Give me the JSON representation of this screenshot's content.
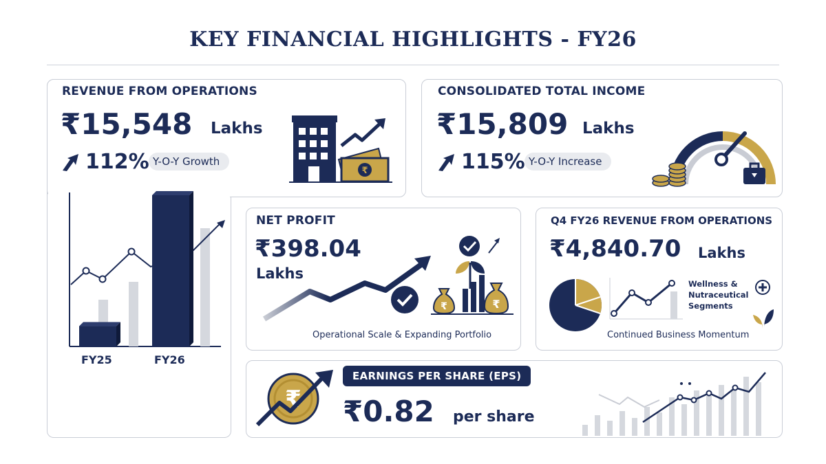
{
  "title": "KEY FINANCIAL HIGHLIGHTS - FY26",
  "colors": {
    "navy": "#1c2b57",
    "gold": "#c9a64a",
    "gray": "#c9ccd4"
  },
  "revenue": {
    "label": "REVENUE FROM OPERATIONS",
    "value": "₹15,548",
    "unit": "Lakhs",
    "growth_pct": "112%",
    "growth_text": "Y-O-Y Growth",
    "icons": [
      "building-icon",
      "money-icon",
      "trend-arrow-icon"
    ]
  },
  "income": {
    "label": "CONSOLIDATED TOTAL INCOME",
    "value": "₹15,809",
    "unit": "Lakhs",
    "growth_pct": "115%",
    "growth_text": "Y-O-Y Increase",
    "icons": [
      "gauge-icon",
      "coins-icon",
      "briefcase-icon"
    ]
  },
  "bar_chart": {
    "categories": [
      "FY25",
      "FY26"
    ],
    "values": [
      15,
      112
    ]
  },
  "net_profit": {
    "label": "NET PROFIT",
    "value": "₹398.04",
    "unit": "Lakhs",
    "caption": "Operational Scale & Expanding Portfolio",
    "icons": [
      "trend-arrow-icon",
      "checkmark-icon",
      "plant-icon",
      "money-bag-icon"
    ]
  },
  "q4": {
    "label": "Q4 FY26 REVENUE FROM OPERATIONS",
    "value": "₹4,840.70",
    "unit": "Lakhs",
    "segment_text": "Wellness & Nutraceutical Segments",
    "caption": "Continued Business Momentum",
    "icons": [
      "pie-chart-icon",
      "line-chart-icon",
      "plus-icon",
      "leaf-icon"
    ]
  },
  "eps": {
    "badge": "EARNINGS PER SHARE (EPS)",
    "value": "₹0.82",
    "unit": "per share",
    "icons": [
      "rupee-coin-icon",
      "trend-arrow-icon",
      "bar-chart-icon"
    ]
  }
}
